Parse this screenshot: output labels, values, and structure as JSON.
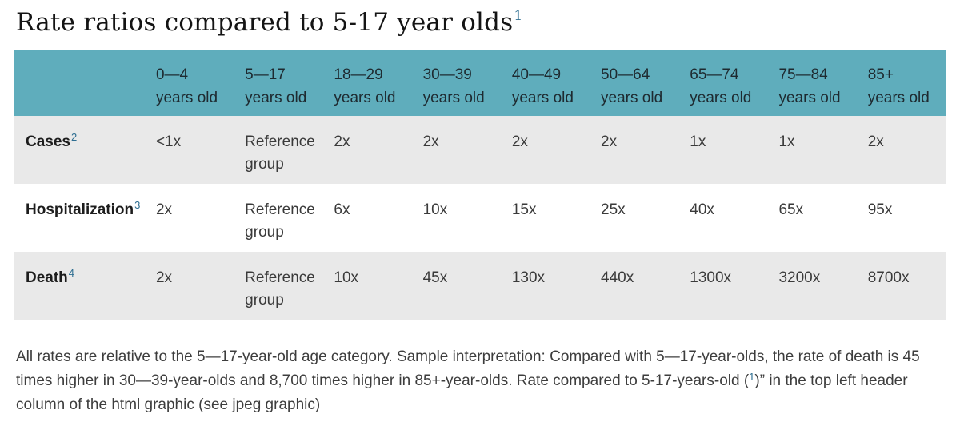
{
  "colors": {
    "header_bg": "#5fadbc",
    "row_alt_bg": "#e9e9e9",
    "superscript_accent": "#2e6e91"
  },
  "chart_data": {
    "type": "table",
    "title": "Rate ratios compared to 5-17 year olds",
    "title_sup": "1",
    "columns": [
      {
        "range": "0—4",
        "suffix": "years old"
      },
      {
        "range": "5—17",
        "suffix": "years old"
      },
      {
        "range": "18—29",
        "suffix": "years old"
      },
      {
        "range": "30—39",
        "suffix": "years old"
      },
      {
        "range": "40—49",
        "suffix": "years old"
      },
      {
        "range": "50—64",
        "suffix": "years old"
      },
      {
        "range": "65—74",
        "suffix": "years old"
      },
      {
        "range": "75—84",
        "suffix": "years old"
      },
      {
        "range": "85+",
        "suffix": "years old"
      }
    ],
    "rows": [
      {
        "label": "Cases",
        "sup": "2",
        "values": [
          "<1x",
          "Reference group",
          "2x",
          "2x",
          "2x",
          "2x",
          "1x",
          "1x",
          "2x"
        ]
      },
      {
        "label": "Hospitalization",
        "sup": "3",
        "values": [
          "2x",
          "Reference group",
          "6x",
          "10x",
          "15x",
          "25x",
          "40x",
          "65x",
          "95x"
        ]
      },
      {
        "label": "Death",
        "sup": "4",
        "values": [
          "2x",
          "Reference group",
          "10x",
          "45x",
          "130x",
          "440x",
          "1300x",
          "3200x",
          "8700x"
        ]
      }
    ],
    "footnote": {
      "part1": "All rates are relative to the 5—17-year-old age category. Sample interpretation: Compared with 5—17-year-olds, the rate of death is 45 times higher in 30—39-year-olds and 8,700 times higher in 85+-year-olds. Rate compared to 5-17-years-old (",
      "sup": "1",
      "part2": ")” in the top left header column of the html graphic (see jpeg graphic)"
    }
  }
}
